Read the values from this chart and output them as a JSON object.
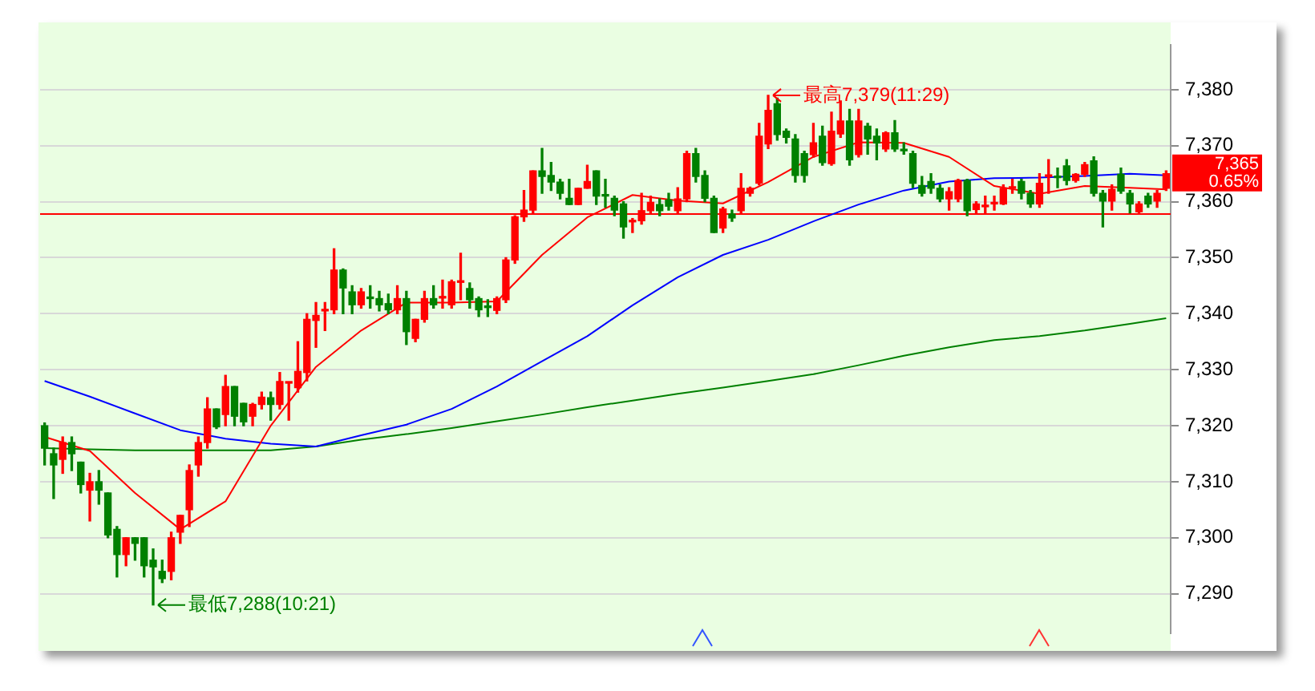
{
  "chart_data": {
    "type": "candlestick",
    "categories": [
      null,
      null,
      null,
      null,
      null,
      null,
      null,
      null,
      null,
      null,
      null,
      null,
      null,
      null,
      null,
      null,
      null,
      null,
      null,
      null,
      null,
      null,
      null,
      null,
      null,
      null,
      null,
      null,
      null,
      null,
      null,
      null,
      null,
      null,
      null,
      null,
      null,
      null,
      null,
      null,
      null,
      null,
      null,
      null,
      null,
      null,
      null,
      null,
      null,
      null,
      null,
      null,
      null,
      null,
      null,
      null,
      null,
      null,
      null,
      null,
      null,
      null,
      null,
      null,
      null,
      null,
      null,
      null,
      null,
      null,
      null,
      null,
      null,
      null,
      null,
      null,
      null,
      null,
      null,
      null,
      null,
      null,
      null,
      null,
      null,
      null,
      null,
      null,
      null,
      null,
      null,
      null,
      null,
      null,
      null,
      null,
      null,
      null,
      null,
      null,
      null,
      null,
      null,
      null,
      null,
      null,
      null,
      null,
      null,
      null,
      null,
      null,
      null,
      null,
      null,
      null,
      null,
      null,
      null,
      null,
      null,
      null,
      null,
      null,
      null
    ],
    "ohlc": [
      [
        7320,
        7320.5,
        7313,
        7316
      ],
      [
        7315,
        7316,
        7307,
        7313
      ],
      [
        7314,
        7318,
        7311.5,
        7317
      ],
      [
        7317,
        7318,
        7312,
        7315
      ],
      [
        7313.5,
        7313.5,
        7308,
        7309.5
      ],
      [
        7308.5,
        7311.5,
        7303,
        7310
      ],
      [
        7310,
        7312,
        7306,
        7308.5
      ],
      [
        7308,
        7308,
        7300,
        7300.5
      ],
      [
        7301.5,
        7302,
        7293,
        7297
      ],
      [
        7297,
        7300,
        7295,
        7300
      ],
      [
        7300,
        7300,
        7296,
        7299
      ],
      [
        7300,
        7300,
        7293,
        7295
      ],
      [
        7296,
        7298,
        7288,
        7294.8
      ],
      [
        7294,
        7296,
        7292,
        7292.7
      ],
      [
        7294,
        7301,
        7292.5,
        7300
      ],
      [
        7301,
        7304,
        7299,
        7304
      ],
      [
        7305,
        7313,
        7302,
        7312
      ],
      [
        7313,
        7318,
        7311,
        7317
      ],
      [
        7317,
        7325,
        7316,
        7323
      ],
      [
        7323,
        7323,
        7319.5,
        7319.8
      ],
      [
        7322,
        7329,
        7320,
        7327
      ],
      [
        7327,
        7327,
        7320,
        7321.7
      ],
      [
        7324,
        7324,
        7320,
        7320.7
      ],
      [
        7321.7,
        7324,
        7320,
        7323.8
      ],
      [
        7323.8,
        7326,
        7323,
        7325.1
      ],
      [
        7325,
        7326,
        7321,
        7323.8
      ],
      [
        7323.8,
        7329.5,
        7323,
        7327.9
      ],
      [
        7327.6,
        7327.8,
        7321,
        7327.8
      ],
      [
        7326.8,
        7335,
        7326,
        7329.7
      ],
      [
        7329.5,
        7340,
        7328,
        7339
      ],
      [
        7338.8,
        7342,
        7334,
        7339.7
      ],
      [
        7340.5,
        7342,
        7337,
        7340.7
      ],
      [
        7340.7,
        7351.6,
        7340,
        7347.8
      ],
      [
        7347.8,
        7348,
        7340,
        7344.6
      ],
      [
        7343.9,
        7345,
        7340,
        7341.6
      ],
      [
        7341.6,
        7344.5,
        7341,
        7343.9
      ],
      [
        7342.8,
        7345,
        7341,
        7342.7
      ],
      [
        7342.7,
        7344,
        7340.5,
        7341.6
      ],
      [
        7341.8,
        7343.5,
        7340,
        7340.7
      ],
      [
        7340.7,
        7345,
        7340,
        7342.7
      ],
      [
        7342.7,
        7344,
        7334.5,
        7336.8
      ],
      [
        7335.6,
        7339,
        7335,
        7339
      ],
      [
        7339,
        7344,
        7338.5,
        7342.7
      ],
      [
        7342.7,
        7345,
        7341,
        7341.6
      ],
      [
        7342.8,
        7346,
        7341,
        7343
      ],
      [
        7341.6,
        7346,
        7341,
        7345.7
      ],
      [
        7345.6,
        7350.8,
        7342.5,
        7345.8
      ],
      [
        7344.5,
        7345.5,
        7341,
        7342.5
      ],
      [
        7342.7,
        7343,
        7339.5,
        7340.7
      ],
      [
        7341.2,
        7342.5,
        7339.5,
        7341.1
      ],
      [
        7340.6,
        7343,
        7340,
        7342.7
      ],
      [
        7342.5,
        7350,
        7342,
        7349.6
      ],
      [
        7349.6,
        7357.5,
        7349,
        7357.3
      ],
      [
        7357.3,
        7362,
        7356.5,
        7358.5
      ],
      [
        7358.5,
        7365.5,
        7358,
        7365.5
      ],
      [
        7365.5,
        7369.5,
        7361.5,
        7364.5
      ],
      [
        7364.7,
        7367,
        7362,
        7363.5
      ],
      [
        7363.5,
        7364,
        7360.5,
        7361.5
      ],
      [
        7360.6,
        7364,
        7359.5,
        7359.5
      ],
      [
        7359.5,
        7362.4,
        7359.5,
        7362.4
      ],
      [
        7362.4,
        7366.5,
        7362.4,
        7363.6
      ],
      [
        7365.5,
        7365.5,
        7359.5,
        7361
      ],
      [
        7361.1,
        7364,
        7359,
        7361
      ],
      [
        7360.6,
        7361,
        7357.5,
        7358.5
      ],
      [
        7359.6,
        7360,
        7353.5,
        7355.5
      ],
      [
        7356.4,
        7357,
        7354.5,
        7356.6
      ],
      [
        7356.6,
        7361.5,
        7356,
        7358.4
      ],
      [
        7358.4,
        7361,
        7358,
        7359.9
      ],
      [
        7359.5,
        7360.5,
        7357.5,
        7358.4
      ],
      [
        7360.3,
        7361.5,
        7358.5,
        7359.2
      ],
      [
        7358.4,
        7362.5,
        7358,
        7360.5
      ],
      [
        7360.5,
        7369,
        7360,
        7368.6
      ],
      [
        7368.6,
        7369.5,
        7363.5,
        7364.5
      ],
      [
        7364.7,
        7365.5,
        7360,
        7360.6
      ],
      [
        7360.6,
        7361,
        7354.5,
        7354.5
      ],
      [
        7355.3,
        7359,
        7354.5,
        7358.7
      ],
      [
        7357.8,
        7358.5,
        7356.5,
        7357.1
      ],
      [
        7358.4,
        7365,
        7358,
        7362.4
      ],
      [
        7361.5,
        7362.6,
        7361,
        7362.4
      ],
      [
        7363.3,
        7374,
        7363,
        7371.7
      ],
      [
        7370.3,
        7379,
        7369.5,
        7376.3
      ],
      [
        7377.5,
        7378.5,
        7371,
        7372
      ],
      [
        7372.6,
        7373,
        7370.5,
        7371.5
      ],
      [
        7371.2,
        7372,
        7363.5,
        7364.7
      ],
      [
        7368.6,
        7369,
        7363.5,
        7364.7
      ],
      [
        7368.4,
        7374,
        7368,
        7370.5
      ],
      [
        7371.7,
        7373.5,
        7366.5,
        7367
      ],
      [
        7366.8,
        7376,
        7366.5,
        7372.6
      ],
      [
        7372.1,
        7378,
        7371.5,
        7374.4
      ],
      [
        7374.4,
        7376.5,
        7366.5,
        7367.5
      ],
      [
        7368.4,
        7376.5,
        7368,
        7374.4
      ],
      [
        7373.5,
        7374,
        7368.5,
        7371.2
      ],
      [
        7371.7,
        7373,
        7367.5,
        7370.5
      ],
      [
        7369.4,
        7372.5,
        7369,
        7372.3
      ],
      [
        7372.3,
        7374.5,
        7369,
        7369.4
      ],
      [
        7369.2,
        7370.5,
        7368.5,
        7369.1
      ],
      [
        7368.6,
        7369,
        7362.5,
        7363.3
      ],
      [
        7362.9,
        7364.5,
        7361,
        7361.5
      ],
      [
        7363.6,
        7365,
        7361.5,
        7362.4
      ],
      [
        7362.4,
        7363,
        7360,
        7360.5
      ],
      [
        7360.5,
        7362.5,
        7358.5,
        7361.8
      ],
      [
        7360.5,
        7364,
        7360,
        7363.8
      ],
      [
        7363.8,
        7364,
        7357.5,
        7358.4
      ],
      [
        7358.6,
        7360,
        7358,
        7359.6
      ],
      [
        7359.1,
        7361,
        7358,
        7359.2
      ],
      [
        7359.6,
        7361,
        7358.5,
        7359.7
      ],
      [
        7359.6,
        7363,
        7359.5,
        7362.4
      ],
      [
        7362.4,
        7364,
        7361.5,
        7362.5
      ],
      [
        7363.6,
        7364,
        7360.5,
        7361.5
      ],
      [
        7361.5,
        7362,
        7359,
        7359.6
      ],
      [
        7359.6,
        7365,
        7359,
        7363.3
      ],
      [
        7364.5,
        7367.5,
        7361.5,
        7364.8
      ],
      [
        7364.4,
        7366,
        7362.5,
        7364.3
      ],
      [
        7366.4,
        7367.5,
        7363,
        7363.8
      ],
      [
        7363.8,
        7365,
        7363.5,
        7364.9
      ],
      [
        7364.9,
        7367,
        7364.5,
        7366.6
      ],
      [
        7367.3,
        7368,
        7361,
        7361.5
      ],
      [
        7361.5,
        7362,
        7355.5,
        7360.1
      ],
      [
        7360.1,
        7363,
        7358.5,
        7362.2
      ],
      [
        7364.9,
        7366,
        7361.5,
        7361.9
      ],
      [
        7361.5,
        7362,
        7358,
        7359.6
      ],
      [
        7358.2,
        7360,
        7358,
        7359.6
      ],
      [
        7361,
        7361.5,
        7359,
        7359.6
      ],
      [
        7360.1,
        7362,
        7359,
        7361.5
      ],
      [
        7362.4,
        7365.5,
        7362,
        7365
      ]
    ],
    "colors": [
      "#008000",
      "#008000",
      "#ff0000",
      "#008000",
      "#008000",
      "#ff0000",
      "#008000",
      "#008000",
      "#008000",
      "#ff0000",
      "#008000",
      "#008000",
      "#008000",
      "#008000",
      "#ff0000",
      "#ff0000",
      "#ff0000",
      "#ff0000",
      "#ff0000",
      "#008000",
      "#ff0000",
      "#008000",
      "#008000",
      "#ff0000",
      "#ff0000",
      "#008000",
      "#ff0000",
      "#ff0000",
      "#ff0000",
      "#ff0000",
      "#ff0000",
      "#ff0000",
      "#ff0000",
      "#008000",
      "#008000",
      "#ff0000",
      "#008000",
      "#008000",
      "#008000",
      "#ff0000",
      "#008000",
      "#ff0000",
      "#ff0000",
      "#008000",
      "#ff0000",
      "#ff0000",
      "#ff0000",
      "#008000",
      "#008000",
      "#008000",
      "#ff0000",
      "#ff0000",
      "#ff0000",
      "#ff0000",
      "#ff0000",
      "#008000",
      "#008000",
      "#008000",
      "#008000",
      "#ff0000",
      "#ff0000",
      "#008000",
      "#008000",
      "#008000",
      "#008000",
      "#ff0000",
      "#ff0000",
      "#ff0000",
      "#008000",
      "#008000",
      "#ff0000",
      "#ff0000",
      "#008000",
      "#008000",
      "#008000",
      "#ff0000",
      "#008000",
      "#ff0000",
      "#ff0000",
      "#ff0000",
      "#ff0000",
      "#008000",
      "#008000",
      "#008000",
      "#008000",
      "#ff0000",
      "#008000",
      "#ff0000",
      "#ff0000",
      "#008000",
      "#ff0000",
      "#008000",
      "#008000",
      "#ff0000",
      "#008000",
      "#008000",
      "#008000",
      "#008000",
      "#008000",
      "#008000",
      "#ff0000",
      "#ff0000",
      "#008000",
      "#ff0000",
      "#ff0000",
      "#ff0000",
      "#ff0000",
      "#ff0000",
      "#008000",
      "#008000",
      "#ff0000",
      "#ff0000",
      "#008000",
      "#008000",
      "#ff0000",
      "#ff0000",
      "#008000",
      "#008000",
      "#ff0000",
      "#008000",
      "#008000",
      "#ff0000",
      "#008000",
      "#ff0000",
      "#ff0000"
    ],
    "series": [
      {
        "type": "line",
        "color": "#ff0000",
        "values": [
          7318,
          null,
          null,
          null,
          null,
          7315.5,
          null,
          null,
          null,
          null,
          7308,
          null,
          null,
          null,
          null,
          7301.5,
          null,
          null,
          null,
          null,
          7306.5,
          null,
          null,
          null,
          null,
          7320,
          null,
          null,
          null,
          null,
          7330.5,
          null,
          null,
          null,
          null,
          7337,
          null,
          null,
          null,
          null,
          7342,
          null,
          null,
          null,
          null,
          7342,
          null,
          null,
          null,
          null,
          7342.2,
          null,
          null,
          null,
          null,
          7350.5,
          null,
          null,
          null,
          null,
          7357.2,
          null,
          null,
          null,
          null,
          7361.2,
          null,
          null,
          null,
          null,
          7360.2,
          null,
          null,
          null,
          null,
          7359.7,
          null,
          null,
          null,
          null,
          7363.5,
          null,
          null,
          null,
          null,
          7368,
          null,
          null,
          null,
          null,
          7370.6,
          null,
          null,
          null,
          null,
          7370.5,
          null,
          null,
          null,
          null,
          7368,
          null,
          null,
          null,
          null,
          7362.8,
          null,
          null,
          null,
          null,
          7361.4,
          null,
          null,
          null,
          null,
          7362.8,
          null,
          null,
          null,
          null,
          7362.5,
          null,
          null,
          null,
          7362.2
        ]
      },
      {
        "type": "line",
        "color": "#0000ff",
        "values": [
          7328,
          null,
          null,
          null,
          null,
          7325.2,
          null,
          null,
          null,
          null,
          7322.2,
          null,
          null,
          null,
          null,
          7319.2,
          null,
          null,
          null,
          null,
          7317.7,
          null,
          null,
          null,
          null,
          7316.8,
          null,
          null,
          null,
          null,
          7316.3,
          null,
          null,
          null,
          null,
          7318.3,
          null,
          null,
          null,
          null,
          7320.2,
          null,
          null,
          null,
          null,
          7323,
          null,
          null,
          null,
          null,
          7327,
          null,
          null,
          null,
          null,
          7331.5,
          null,
          null,
          null,
          null,
          7336,
          null,
          null,
          null,
          null,
          7341.5,
          null,
          null,
          null,
          null,
          7346.5,
          null,
          null,
          null,
          null,
          7350.5,
          null,
          null,
          null,
          null,
          7353.2,
          null,
          null,
          null,
          null,
          7356.5,
          null,
          null,
          null,
          null,
          7359.5,
          null,
          null,
          null,
          null,
          7362,
          null,
          null,
          null,
          null,
          7363.6,
          null,
          null,
          null,
          null,
          7364.2,
          null,
          null,
          null,
          null,
          7364.3,
          null,
          null,
          null,
          null,
          7364.6,
          null,
          null,
          null,
          null,
          7365,
          null,
          null,
          null,
          7364.7
        ]
      },
      {
        "type": "line",
        "color": "#008000",
        "values": [
          7316,
          null,
          null,
          null,
          null,
          7315.8,
          null,
          null,
          null,
          null,
          7315.6,
          null,
          null,
          null,
          null,
          7315.6,
          null,
          null,
          null,
          null,
          7315.6,
          null,
          null,
          null,
          null,
          7315.6,
          null,
          null,
          null,
          null,
          7316.3,
          null,
          null,
          null,
          null,
          7317.5,
          null,
          null,
          null,
          null,
          7318.5,
          null,
          null,
          null,
          null,
          7319.6,
          null,
          null,
          null,
          null,
          7320.8,
          null,
          null,
          null,
          null,
          7322,
          null,
          null,
          null,
          null,
          7323.3,
          null,
          null,
          null,
          null,
          7324.5,
          null,
          null,
          null,
          null,
          7325.7,
          null,
          null,
          null,
          null,
          7326.8,
          null,
          null,
          null,
          null,
          7328,
          null,
          null,
          null,
          null,
          7329.2,
          null,
          null,
          null,
          null,
          7330.8,
          null,
          null,
          null,
          null,
          7332.5,
          null,
          null,
          null,
          null,
          7334,
          null,
          null,
          null,
          null,
          7335.3,
          null,
          null,
          null,
          null,
          7336,
          null,
          null,
          null,
          null,
          7337,
          null,
          null,
          null,
          null,
          7338.2,
          null,
          null,
          null,
          7339.2
        ]
      }
    ],
    "ylim": [
      7283,
      7388
    ],
    "yticks": [
      {
        "value": 7290,
        "label": "7,290"
      },
      {
        "value": 7300,
        "label": "7,300"
      },
      {
        "value": 7310,
        "label": "7,310"
      },
      {
        "value": 7320,
        "label": "7,320"
      },
      {
        "value": 7330,
        "label": "7,330"
      },
      {
        "value": 7340,
        "label": "7,340"
      },
      {
        "value": 7350,
        "label": "7,350"
      },
      {
        "value": 7360,
        "label": "7,360"
      },
      {
        "value": 7370,
        "label": "7,370"
      },
      {
        "value": 7380,
        "label": "7,380"
      }
    ],
    "grid": "y",
    "marker": "none",
    "ref_lines": [
      {
        "axis": "y",
        "value": 7357.8,
        "color": "#ff0000"
      }
    ],
    "annotations": [
      "最高7,379(11:29)",
      "最低7,288(10:21)",
      "7,365",
      "0.65%"
    ]
  }
}
